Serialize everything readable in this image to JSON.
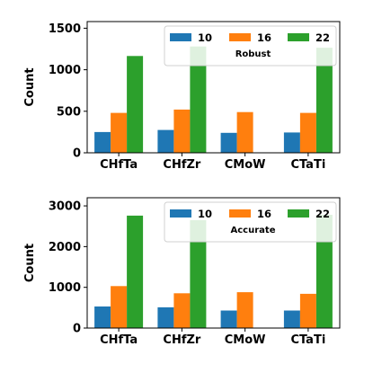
{
  "chart_data": [
    {
      "type": "bar",
      "annotation": "Robust",
      "ylabel": "Count",
      "categories": [
        "CHfTa",
        "CHfZr",
        "CMoW",
        "CTaTi"
      ],
      "ylim": [
        0,
        1580
      ],
      "yticks": [
        0,
        500,
        1000,
        1500
      ],
      "legend": "top-right",
      "series": [
        {
          "name": "10",
          "color": "#1f77b4",
          "values": [
            250,
            275,
            240,
            245
          ]
        },
        {
          "name": "16",
          "color": "#ff7f0e",
          "values": [
            480,
            520,
            490,
            480
          ]
        },
        {
          "name": "22",
          "color": "#2ca02c",
          "values": [
            1165,
            1280,
            null,
            1265
          ]
        }
      ]
    },
    {
      "type": "bar",
      "annotation": "Accurate",
      "ylabel": "Count",
      "categories": [
        "CHfTa",
        "CHfZr",
        "CMoW",
        "CTaTi"
      ],
      "ylim": [
        0,
        3200
      ],
      "yticks": [
        0,
        1000,
        2000,
        3000
      ],
      "legend": "top-right",
      "series": [
        {
          "name": "10",
          "color": "#1f77b4",
          "values": [
            530,
            510,
            430,
            430
          ]
        },
        {
          "name": "16",
          "color": "#ff7f0e",
          "values": [
            1030,
            855,
            880,
            840
          ]
        },
        {
          "name": "22",
          "color": "#2ca02c",
          "values": [
            2760,
            2650,
            null,
            2780
          ]
        }
      ]
    }
  ]
}
